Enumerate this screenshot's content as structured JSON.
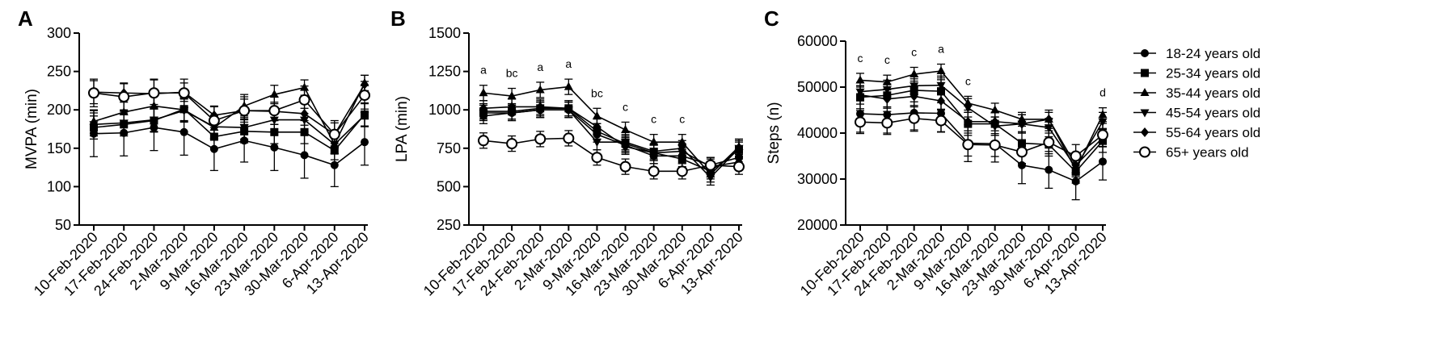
{
  "chart_data": [
    {
      "panel": "A",
      "type": "line",
      "ylabel": "MVPA (min)",
      "ylim": [
        50,
        300
      ],
      "yticks": [
        "50",
        "100",
        "150",
        "200",
        "250",
        "300"
      ],
      "categories": [
        "10-Feb-2020",
        "17-Feb-2020",
        "24-Feb-2020",
        "2-Mar-2020",
        "9-Mar-2020",
        "16-Mar-2020",
        "23-Mar-2020",
        "30-Mar-2020",
        "6-Apr-2020",
        "13-Apr-2020"
      ],
      "series": [
        {
          "name": "18-24 years old",
          "values": [
            169,
            170,
            177,
            171,
            149,
            160,
            151,
            141,
            128,
            158
          ],
          "errors": [
            30,
            30,
            30,
            30,
            28,
            28,
            30,
            30,
            28,
            30
          ]
        },
        {
          "name": "25-34 years old",
          "values": [
            177,
            181,
            186,
            201,
            165,
            172,
            171,
            171,
            147,
            194
          ],
          "errors": [
            15,
            15,
            15,
            15,
            15,
            15,
            15,
            15,
            12,
            15
          ]
        },
        {
          "name": "35-44 years old",
          "values": [
            185,
            197,
            205,
            200,
            177,
            205,
            220,
            229,
            155,
            235
          ],
          "errors": [
            15,
            15,
            15,
            15,
            15,
            15,
            12,
            10,
            12,
            10
          ]
        },
        {
          "name": "45-54 years old",
          "values": [
            181,
            183,
            187,
            199,
            178,
            177,
            187,
            187,
            155,
            193
          ],
          "errors": [
            15,
            15,
            15,
            15,
            15,
            15,
            15,
            15,
            12,
            15
          ]
        },
        {
          "name": "55-64 years old",
          "values": [
            223,
            222,
            221,
            223,
            193,
            199,
            198,
            195,
            168,
            233
          ],
          "errors": [
            15,
            12,
            18,
            12,
            12,
            15,
            12,
            15,
            15,
            12
          ]
        },
        {
          "name": "65+ years old",
          "values": [
            222,
            217,
            222,
            222,
            186,
            199,
            199,
            213,
            168,
            219
          ],
          "errors": [
            18,
            18,
            18,
            18,
            18,
            18,
            18,
            18,
            18,
            18
          ]
        }
      ],
      "sig_labels": [
        "",
        "",
        "",
        "",
        "",
        "",
        "",
        "",
        "",
        ""
      ]
    },
    {
      "panel": "B",
      "type": "line",
      "ylabel": "LPA (min)",
      "ylim": [
        250,
        1500
      ],
      "yticks": [
        "250",
        "500",
        "750",
        "1000",
        "1250",
        "1500"
      ],
      "categories": [
        "10-Feb-2020",
        "17-Feb-2020",
        "24-Feb-2020",
        "2-Mar-2020",
        "9-Mar-2020",
        "16-Mar-2020",
        "23-Mar-2020",
        "30-Mar-2020",
        "6-Apr-2020",
        "13-Apr-2020"
      ],
      "series": [
        {
          "name": "18-24 years old",
          "values": [
            960,
            980,
            1000,
            1000,
            840,
            770,
            700,
            700,
            640,
            690
          ],
          "errors": [
            50,
            50,
            50,
            50,
            50,
            50,
            50,
            50,
            50,
            50
          ]
        },
        {
          "name": "25-34 years old",
          "values": [
            990,
            990,
            1010,
            1010,
            860,
            780,
            720,
            680,
            600,
            740
          ],
          "errors": [
            50,
            50,
            50,
            50,
            50,
            50,
            50,
            50,
            50,
            50
          ]
        },
        {
          "name": "35-44 years old",
          "values": [
            1110,
            1090,
            1130,
            1150,
            960,
            870,
            790,
            790,
            580,
            760
          ],
          "errors": [
            50,
            50,
            50,
            50,
            50,
            50,
            50,
            50,
            50,
            50
          ]
        },
        {
          "name": "45-54 years old",
          "values": [
            980,
            980,
            1000,
            1000,
            790,
            790,
            730,
            750,
            560,
            750
          ],
          "errors": [
            50,
            50,
            50,
            50,
            50,
            50,
            50,
            50,
            50,
            50
          ]
        },
        {
          "name": "55-64 years old",
          "values": [
            1010,
            1020,
            1020,
            1010,
            890,
            760,
            720,
            730,
            630,
            660
          ],
          "errors": [
            50,
            50,
            50,
            50,
            50,
            50,
            50,
            50,
            50,
            50
          ]
        },
        {
          "name": "65+ years old",
          "values": [
            800,
            780,
            810,
            815,
            690,
            630,
            600,
            600,
            640,
            630
          ],
          "errors": [
            50,
            50,
            50,
            50,
            50,
            50,
            50,
            50,
            50,
            50
          ]
        }
      ],
      "sig_labels": [
        "a",
        "bc",
        "a",
        "a",
        "bc",
        "c",
        "c",
        "c",
        "",
        ""
      ]
    },
    {
      "panel": "C",
      "type": "line",
      "ylabel": "Steps (n)",
      "ylim": [
        20000,
        60000
      ],
      "yticks": [
        "20000",
        "30000",
        "40000",
        "50000",
        "60000"
      ],
      "categories": [
        "10-Feb-2020",
        "17-Feb-2020",
        "24-Feb-2020",
        "2-Mar-2020",
        "9-Mar-2020",
        "16-Mar-2020",
        "23-Mar-2020",
        "30-Mar-2020",
        "6-Apr-2020",
        "13-Apr-2020"
      ],
      "series": [
        {
          "name": "18-24 years old",
          "values": [
            44200,
            44000,
            44400,
            44300,
            37800,
            37700,
            33000,
            32000,
            29500,
            33800
          ],
          "errors": [
            4000,
            4000,
            4000,
            4000,
            4000,
            4000,
            4000,
            4000,
            4000,
            4000
          ]
        },
        {
          "name": "25-34 years old",
          "values": [
            47800,
            48200,
            49300,
            49100,
            42000,
            42000,
            37800,
            37500,
            31600,
            38300
          ],
          "errors": [
            2500,
            2500,
            2500,
            2500,
            2500,
            2500,
            2500,
            2500,
            2500,
            2500
          ]
        },
        {
          "name": "35-44 years old",
          "values": [
            51500,
            51100,
            52800,
            53500,
            46500,
            45000,
            43000,
            43000,
            32000,
            44000
          ],
          "errors": [
            1500,
            1500,
            1500,
            1500,
            1500,
            1500,
            1500,
            1500,
            1500,
            1500
          ]
        },
        {
          "name": "45-54 years old",
          "values": [
            49000,
            49500,
            50300,
            50400,
            45500,
            41500,
            42000,
            41200,
            32500,
            42500
          ],
          "errors": [
            2000,
            2000,
            2000,
            2000,
            2000,
            2000,
            2000,
            2000,
            2000,
            2000
          ]
        },
        {
          "name": "55-64 years old",
          "values": [
            48300,
            47400,
            48000,
            47000,
            42500,
            42500,
            42000,
            43000,
            33000,
            39000
          ],
          "errors": [
            2000,
            2000,
            2000,
            2000,
            2000,
            2000,
            2000,
            2000,
            2000,
            2000
          ]
        },
        {
          "name": "65+ years old",
          "values": [
            42400,
            42200,
            43200,
            42700,
            37500,
            37400,
            35900,
            38000,
            35000,
            39600
          ],
          "errors": [
            2500,
            2500,
            2500,
            2500,
            2500,
            2500,
            2500,
            2500,
            2500,
            2500
          ]
        }
      ],
      "sig_labels": [
        "c",
        "c",
        "c",
        "a",
        "c",
        "",
        "",
        "",
        "",
        "d"
      ]
    }
  ],
  "legend": {
    "placement": "right",
    "items": [
      {
        "label": "18-24 years old",
        "marker": "filled-circle"
      },
      {
        "label": "25-34 years old",
        "marker": "filled-square"
      },
      {
        "label": "35-44 years old",
        "marker": "filled-triangle-up"
      },
      {
        "label": "45-54 years old",
        "marker": "filled-triangle-down"
      },
      {
        "label": "55-64 years old",
        "marker": "filled-diamond"
      },
      {
        "label": "65+ years old",
        "marker": "open-circle"
      }
    ]
  },
  "colors": {
    "ink": "#000000",
    "background": "#ffffff"
  }
}
